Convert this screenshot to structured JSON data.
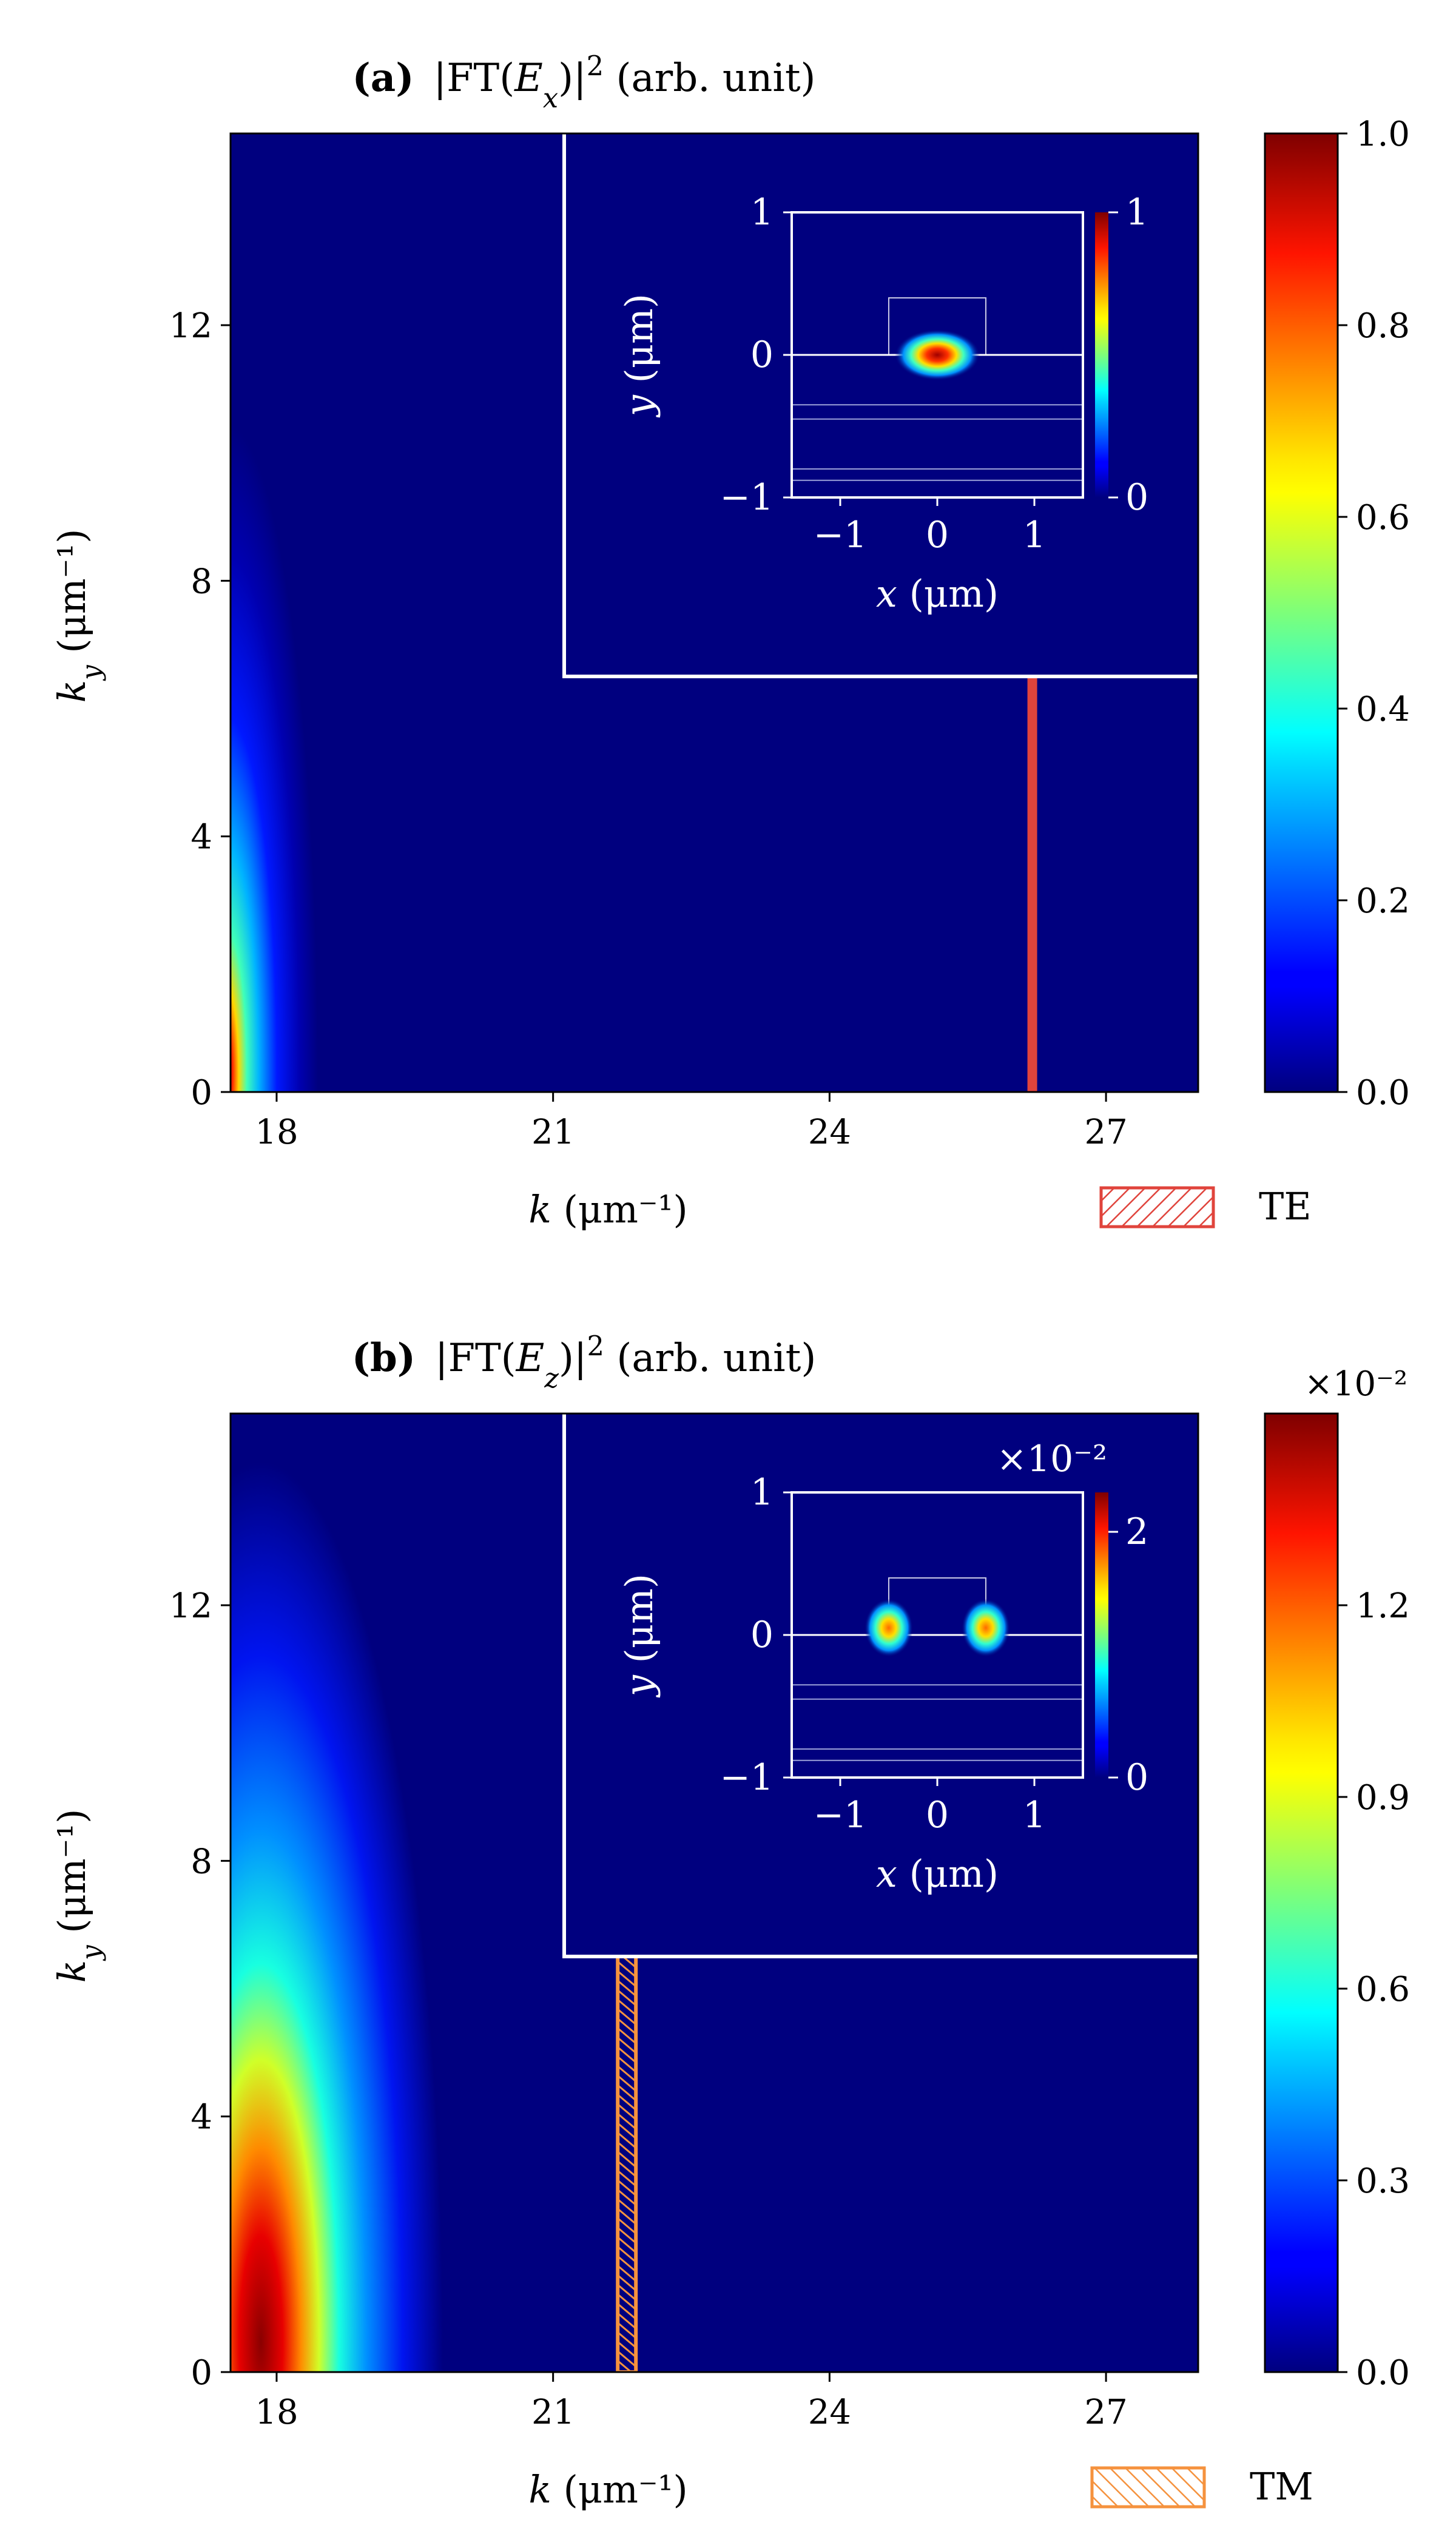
{
  "chart_data": [
    {
      "type": "heatmap",
      "panel": "(a)",
      "title": "|FT(E_x)|^2 (arb. unit)",
      "xlabel": "k (μm⁻¹)",
      "ylabel": "k_y (μm⁻¹)",
      "xlim": [
        17.5,
        28.0
      ],
      "ylim": [
        0,
        15
      ],
      "x_ticks": [
        "18",
        "21",
        "24",
        "27"
      ],
      "y_ticks": [
        "0",
        "4",
        "8",
        "12"
      ],
      "colorbar": {
        "range": [
          0.0,
          1.0
        ],
        "ticks": [
          "0.0",
          "0.2",
          "0.4",
          "0.6",
          "0.8",
          "1.0"
        ],
        "multiplier": ""
      },
      "hotspot": {
        "k_center": 17.6,
        "ky_extent": 6.5,
        "peak": 1.0
      },
      "marker": {
        "k": 26.2,
        "color": "#e0443c",
        "legend": "TE",
        "style": "hatched-diagonal-down"
      },
      "inset": {
        "xlabel": "x (μm)",
        "ylabel": "y (μm)",
        "x_ticks": [
          "−1",
          "0",
          "1"
        ],
        "y_ticks": [
          "−1",
          "0",
          "1"
        ],
        "colorbar_ticks": [
          "0",
          "1"
        ],
        "multiplier": "",
        "mode": "single-lobe"
      }
    },
    {
      "type": "heatmap",
      "panel": "(b)",
      "title": "|FT(E_z)|^2 (arb. unit)",
      "xlabel": "k (μm⁻¹)",
      "ylabel": "k_y (μm⁻¹)",
      "xlim": [
        17.5,
        28.0
      ],
      "ylim": [
        0,
        15
      ],
      "x_ticks": [
        "18",
        "21",
        "24",
        "27"
      ],
      "y_ticks": [
        "0",
        "4",
        "8",
        "12"
      ],
      "colorbar": {
        "range": [
          0.0,
          1.5
        ],
        "ticks": [
          "0.0",
          "0.3",
          "0.6",
          "0.9",
          "1.2"
        ],
        "multiplier": "×10⁻²"
      },
      "hotspot": {
        "k_center": 17.8,
        "ky_extent": 8.5,
        "peak": 1.5
      },
      "marker": {
        "k": 21.8,
        "color": "#f5923e",
        "legend": "TM",
        "style": "hatched-diagonal-up"
      },
      "inset": {
        "xlabel": "x (μm)",
        "ylabel": "y (μm)",
        "x_ticks": [
          "−1",
          "0",
          "1"
        ],
        "y_ticks": [
          "−1",
          "0",
          "1"
        ],
        "colorbar_ticks": [
          "0",
          "2"
        ],
        "multiplier": "×10⁻²",
        "mode": "double-lobe"
      }
    }
  ]
}
